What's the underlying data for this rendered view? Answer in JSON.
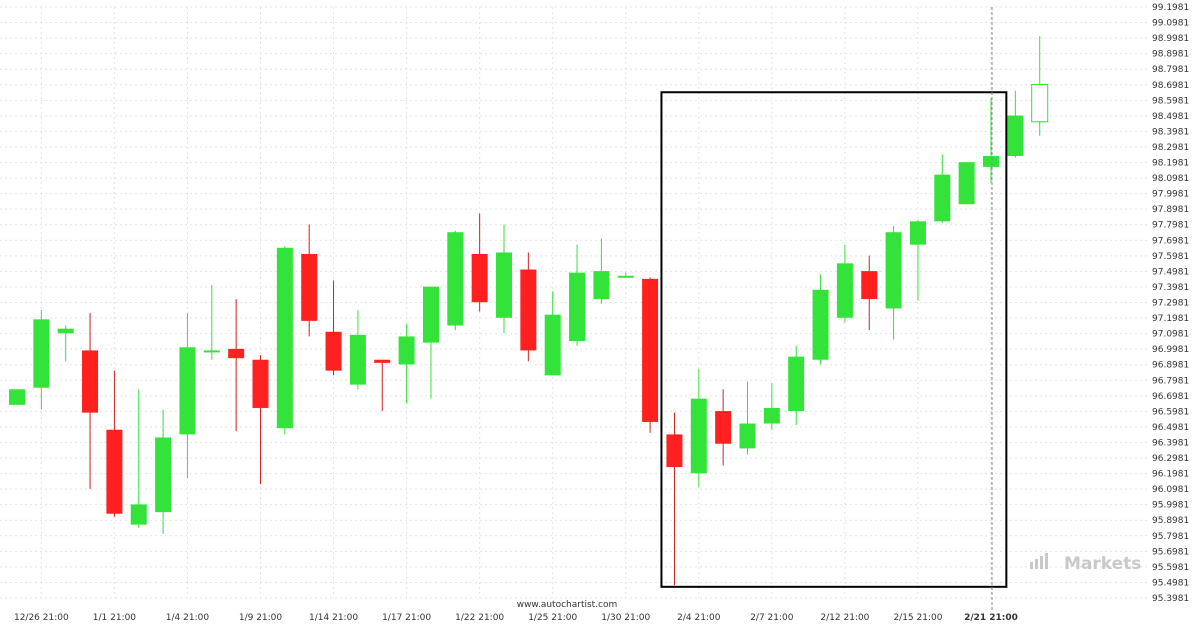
{
  "chart_data": {
    "type": "candlestick",
    "title": "",
    "xlabel": "",
    "ylabel": "",
    "ylim": [
      95.3981,
      99.1981
    ],
    "grid": true,
    "y_ticks": [
      "99.1981",
      "99.0981",
      "98.9981",
      "98.8981",
      "98.7981",
      "98.6981",
      "98.5981",
      "98.4981",
      "98.3981",
      "98.2981",
      "98.1981",
      "98.0981",
      "97.9981",
      "97.8981",
      "97.7981",
      "97.6981",
      "97.5981",
      "97.4981",
      "97.3981",
      "97.2981",
      "97.1981",
      "97.0981",
      "96.9981",
      "96.8981",
      "96.7981",
      "96.6981",
      "96.5981",
      "96.4981",
      "96.3981",
      "96.2981",
      "96.1981",
      "96.0981",
      "95.9981",
      "95.8981",
      "95.7981",
      "95.6981",
      "95.5981",
      "95.4981",
      "95.3981"
    ],
    "x_ticks": [
      {
        "index": 1,
        "label": "12/26 21:00"
      },
      {
        "index": 4,
        "label": "1/1 21:00"
      },
      {
        "index": 7,
        "label": "1/4 21:00"
      },
      {
        "index": 10,
        "label": "1/9 21:00"
      },
      {
        "index": 13,
        "label": "1/14 21:00"
      },
      {
        "index": 16,
        "label": "1/17 21:00"
      },
      {
        "index": 19,
        "label": "1/22 21:00"
      },
      {
        "index": 22,
        "label": "1/25 21:00"
      },
      {
        "index": 25,
        "label": "1/30 21:00"
      },
      {
        "index": 28,
        "label": "2/4 21:00"
      },
      {
        "index": 31,
        "label": "2/7 21:00"
      },
      {
        "index": 34,
        "label": "2/12 21:00"
      },
      {
        "index": 37,
        "label": "2/15 21:00"
      },
      {
        "index": 40,
        "label": "2/21 21:00",
        "highlight": true
      }
    ],
    "candles": [
      {
        "o": 96.64,
        "h": 96.74,
        "l": 96.64,
        "c": 96.74
      },
      {
        "o": 96.75,
        "h": 97.25,
        "l": 96.61,
        "c": 97.19
      },
      {
        "o": 97.1,
        "h": 97.15,
        "l": 96.92,
        "c": 97.13
      },
      {
        "o": 96.99,
        "h": 97.23,
        "l": 96.1,
        "c": 96.59
      },
      {
        "o": 96.48,
        "h": 96.86,
        "l": 95.92,
        "c": 95.94
      },
      {
        "o": 95.87,
        "h": 96.74,
        "l": 95.85,
        "c": 96.0
      },
      {
        "o": 95.95,
        "h": 96.61,
        "l": 95.81,
        "c": 96.43
      },
      {
        "o": 96.45,
        "h": 97.23,
        "l": 96.17,
        "c": 97.01
      },
      {
        "o": 96.99,
        "h": 97.41,
        "l": 96.93,
        "c": 96.99
      },
      {
        "o": 97.0,
        "h": 97.32,
        "l": 96.47,
        "c": 96.94
      },
      {
        "o": 96.93,
        "h": 96.96,
        "l": 96.13,
        "c": 96.62
      },
      {
        "o": 96.49,
        "h": 97.66,
        "l": 96.45,
        "c": 97.65
      },
      {
        "o": 97.61,
        "h": 97.8,
        "l": 97.08,
        "c": 97.18
      },
      {
        "o": 97.11,
        "h": 97.44,
        "l": 96.83,
        "c": 96.86
      },
      {
        "o": 96.77,
        "h": 97.25,
        "l": 96.74,
        "c": 97.09
      },
      {
        "o": 96.93,
        "h": 96.93,
        "l": 96.6,
        "c": 96.91
      },
      {
        "o": 96.9,
        "h": 97.16,
        "l": 96.65,
        "c": 97.08
      },
      {
        "o": 97.04,
        "h": 97.4,
        "l": 96.68,
        "c": 97.4
      },
      {
        "o": 97.15,
        "h": 97.76,
        "l": 97.12,
        "c": 97.75
      },
      {
        "o": 97.61,
        "h": 97.87,
        "l": 97.24,
        "c": 97.3
      },
      {
        "o": 97.2,
        "h": 97.8,
        "l": 97.1,
        "c": 97.62
      },
      {
        "o": 97.51,
        "h": 97.62,
        "l": 96.92,
        "c": 96.99
      },
      {
        "o": 96.83,
        "h": 97.37,
        "l": 96.83,
        "c": 97.22
      },
      {
        "o": 97.05,
        "h": 97.67,
        "l": 97.02,
        "c": 97.49
      },
      {
        "o": 97.32,
        "h": 97.71,
        "l": 97.29,
        "c": 97.5
      },
      {
        "o": 97.47,
        "h": 97.49,
        "l": 97.46,
        "c": 97.47
      },
      {
        "o": 97.45,
        "h": 97.46,
        "l": 96.46,
        "c": 96.53
      },
      {
        "o": 96.45,
        "h": 96.59,
        "l": 95.48,
        "c": 96.24
      },
      {
        "o": 96.2,
        "h": 96.87,
        "l": 96.11,
        "c": 96.68
      },
      {
        "o": 96.6,
        "h": 96.74,
        "l": 96.25,
        "c": 96.39
      },
      {
        "o": 96.36,
        "h": 96.79,
        "l": 96.32,
        "c": 96.52
      },
      {
        "o": 96.52,
        "h": 96.78,
        "l": 96.48,
        "c": 96.62
      },
      {
        "o": 96.6,
        "h": 97.02,
        "l": 96.51,
        "c": 96.95
      },
      {
        "o": 96.93,
        "h": 97.48,
        "l": 96.9,
        "c": 97.38
      },
      {
        "o": 97.2,
        "h": 97.67,
        "l": 97.17,
        "c": 97.55
      },
      {
        "o": 97.5,
        "h": 97.6,
        "l": 97.12,
        "c": 97.32
      },
      {
        "o": 97.26,
        "h": 97.79,
        "l": 97.06,
        "c": 97.75
      },
      {
        "o": 97.67,
        "h": 97.83,
        "l": 97.31,
        "c": 97.82
      },
      {
        "o": 97.82,
        "h": 98.25,
        "l": 97.81,
        "c": 98.12
      },
      {
        "o": 97.93,
        "h": 98.2,
        "l": 97.93,
        "c": 98.2
      },
      {
        "o": 98.17,
        "h": 98.61,
        "l": 98.07,
        "c": 98.24
      },
      {
        "o": 98.24,
        "h": 98.66,
        "l": 98.23,
        "c": 98.5
      },
      {
        "o": 98.46,
        "h": 99.01,
        "l": 98.37,
        "c": 98.7
      }
    ],
    "highlight_box": {
      "start_index": 27,
      "end_index": 41,
      "top": 98.65,
      "bottom": 95.47
    },
    "colors": {
      "up": "#33e33a",
      "down": "#ff2020",
      "wick_up": "#33e33a",
      "wick_down": "#d02020",
      "grid": "#e4e4e4",
      "box": "#000000",
      "current": "#ffffff"
    }
  },
  "source_label": "www.autochartist.com",
  "watermark": {
    "text": "Markets",
    "icon": "ic-markets-logo-icon"
  }
}
